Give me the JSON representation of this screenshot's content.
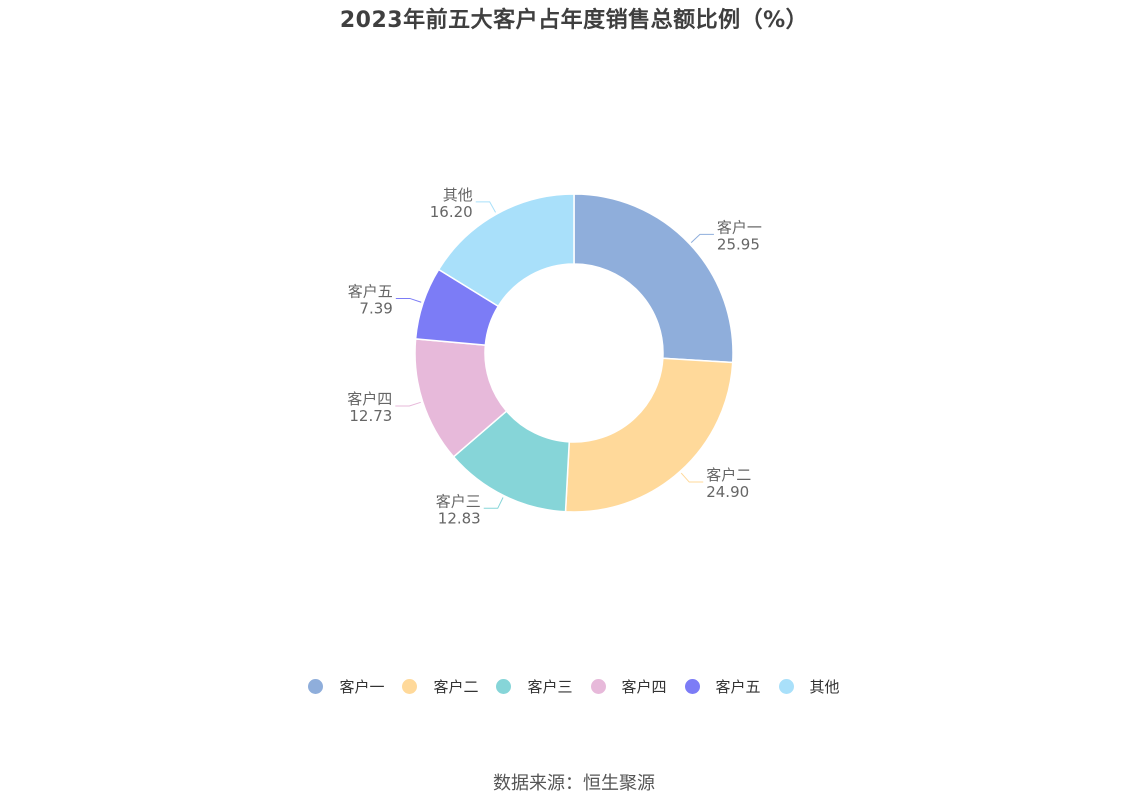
{
  "chart_data": {
    "type": "pie",
    "title": "2023年前五大客户占年度销售总额比例（%）",
    "categories": [
      "客户一",
      "客户二",
      "客户三",
      "客户四",
      "客户五",
      "其他"
    ],
    "values": [
      25.95,
      24.9,
      12.83,
      12.73,
      7.39,
      16.2
    ],
    "value_labels": [
      "25.95",
      "24.90",
      "12.83",
      "12.73",
      "7.39",
      "16.20"
    ],
    "colors": [
      "#8faedb",
      "#ffd99a",
      "#86d5d8",
      "#e7b9da",
      "#7c7cf6",
      "#a9e0fa"
    ],
    "legend_position": "bottom",
    "donut": true
  },
  "source": "数据来源：恒生聚源"
}
